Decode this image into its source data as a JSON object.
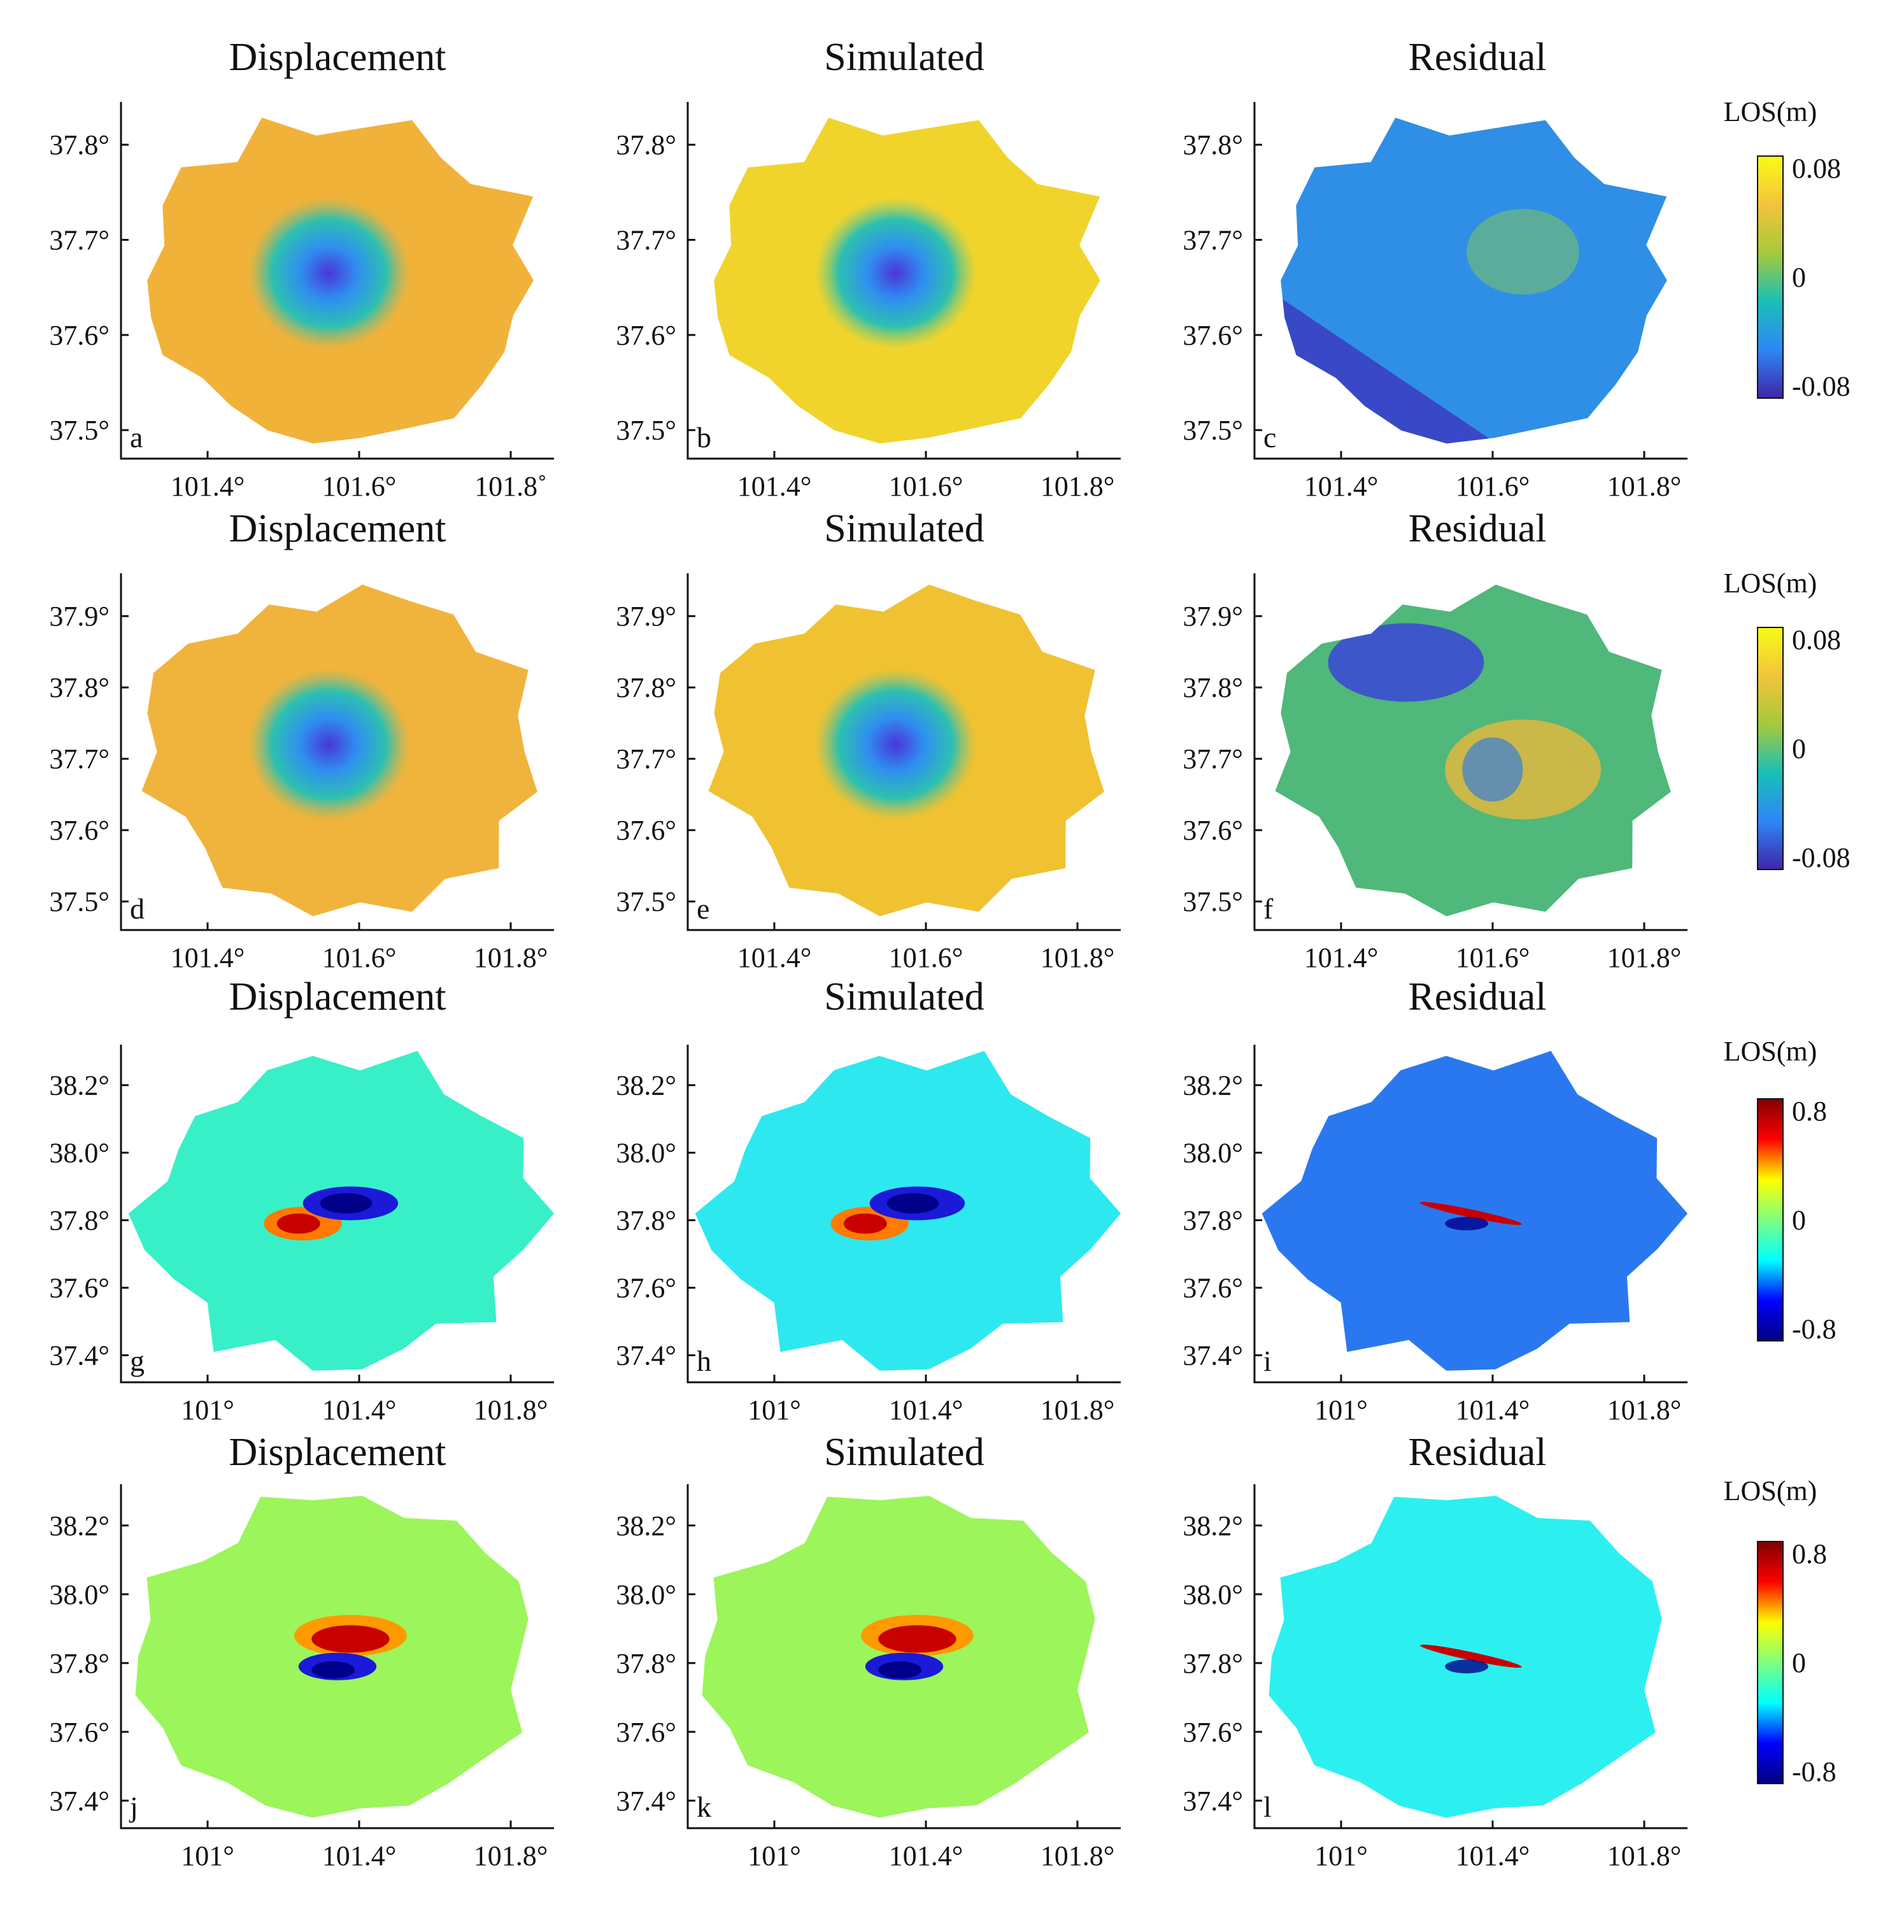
{
  "panels": [
    {
      "letter": "a",
      "title": "Displacement",
      "row": 0,
      "col": 0,
      "cmap": "parula",
      "bg": "#f1b23a",
      "def": "#4a3fe0",
      "pattern": "bowl"
    },
    {
      "letter": "b",
      "title": "Simulated",
      "row": 0,
      "col": 1,
      "cmap": "parula",
      "bg": "#f0d42c",
      "def": "#4a3fe0",
      "pattern": "bowl"
    },
    {
      "letter": "c",
      "title": "Residual",
      "row": 0,
      "col": 2,
      "cmap": "parula",
      "bg": "#2f8fe6",
      "def": "#3a3bc8",
      "pattern": "resid1"
    },
    {
      "letter": "d",
      "title": "Displacement",
      "row": 1,
      "col": 0,
      "cmap": "parula",
      "bg": "#f0b43c",
      "def": "#4a3fe0",
      "pattern": "bowl"
    },
    {
      "letter": "e",
      "title": "Simulated",
      "row": 1,
      "col": 1,
      "cmap": "parula",
      "bg": "#f0c232",
      "def": "#4a3fe0",
      "pattern": "bowl"
    },
    {
      "letter": "f",
      "title": "Residual",
      "row": 1,
      "col": 2,
      "cmap": "parula",
      "bg": "#4fb87a",
      "def": "#3a3bc8",
      "pattern": "resid2"
    },
    {
      "letter": "g",
      "title": "Displacement",
      "row": 2,
      "col": 0,
      "cmap": "jet",
      "bg": "#38f0c8",
      "def": "",
      "pattern": "lobes"
    },
    {
      "letter": "h",
      "title": "Simulated",
      "row": 2,
      "col": 1,
      "cmap": "jet",
      "bg": "#2ee8f0",
      "def": "",
      "pattern": "lobes"
    },
    {
      "letter": "i",
      "title": "Residual",
      "row": 2,
      "col": 2,
      "cmap": "jet",
      "bg": "#2a78f0",
      "def": "",
      "pattern": "thin"
    },
    {
      "letter": "j",
      "title": "Displacement",
      "row": 3,
      "col": 0,
      "cmap": "jet",
      "bg": "#9cf55a",
      "def": "",
      "pattern": "lobes2"
    },
    {
      "letter": "k",
      "title": "Simulated",
      "row": 3,
      "col": 1,
      "cmap": "jet",
      "bg": "#9cf55a",
      "def": "",
      "pattern": "lobes2"
    },
    {
      "letter": "l",
      "title": "Residual",
      "row": 3,
      "col": 2,
      "cmap": "jet",
      "bg": "#2cf0f0",
      "def": "",
      "pattern": "thin"
    }
  ],
  "rows": [
    {
      "yticks": [
        "37.8°",
        "37.7°",
        "37.6°",
        "37.5°"
      ],
      "xticks": [
        "101.4°",
        "101.6°",
        "101.8°"
      ],
      "xticks_c0": [
        "101.4°",
        "101.6°",
        "101.8˚"
      ]
    },
    {
      "yticks": [
        "37.9°",
        "37.8°",
        "37.7°",
        "37.6°",
        "37.5°"
      ],
      "xticks": [
        "101.4°",
        "101.6°",
        "101.8°"
      ],
      "xticks_c0": [
        "101.4°",
        "101.6°",
        "101.8°"
      ]
    },
    {
      "yticks": [
        "38.2°",
        "38.0°",
        "37.8°",
        "37.6°",
        "37.4°"
      ],
      "xticks": [
        "101°",
        "101.4°",
        "101.8°"
      ],
      "xticks_c0": [
        "101°",
        "101.4°",
        "101.8°"
      ]
    },
    {
      "yticks": [
        "38.2°",
        "38.0°",
        "37.8°",
        "37.6°",
        "37.4°"
      ],
      "xticks": [
        "101°",
        "101.4°",
        "101.8°"
      ],
      "xticks_c0": [
        "101°",
        "101.4°",
        "101.8°"
      ]
    }
  ],
  "colorbars": [
    {
      "label": "LOS(m)",
      "max": "0.08",
      "mid": "0",
      "min": "-0.08",
      "cmap": "parula"
    },
    {
      "label": "LOS(m)",
      "max": "0.08",
      "mid": "0",
      "min": "-0.08",
      "cmap": "parula"
    },
    {
      "label": "LOS(m)",
      "max": "0.8",
      "mid": "0",
      "min": "-0.8",
      "cmap": "jet"
    },
    {
      "label": "LOS(m)",
      "max": "0.8",
      "mid": "0",
      "min": "-0.8",
      "cmap": "jet"
    }
  ],
  "colors": {
    "parula": [
      "#3e26a8",
      "#2e87f7",
      "#19c0b7",
      "#a6c93a",
      "#f3c43a",
      "#f9fb15"
    ],
    "jet": [
      "#00007f",
      "#0000ff",
      "#00ffff",
      "#7fff7f",
      "#ffff00",
      "#ff0000",
      "#7f0000"
    ]
  }
}
